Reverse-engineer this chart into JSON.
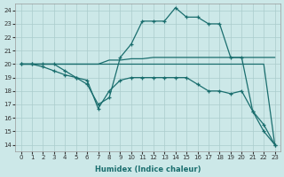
{
  "xlabel": "Humidex (Indice chaleur)",
  "bg_color": "#cce8e8",
  "grid_color": "#aacccc",
  "line_color": "#1a6e6e",
  "xlim": [
    -0.5,
    23.5
  ],
  "ylim": [
    13.5,
    24.5
  ],
  "yticks": [
    14,
    15,
    16,
    17,
    18,
    19,
    20,
    21,
    22,
    23,
    24
  ],
  "xticks": [
    0,
    1,
    2,
    3,
    4,
    5,
    6,
    7,
    8,
    9,
    10,
    11,
    12,
    13,
    14,
    15,
    16,
    17,
    18,
    19,
    20,
    21,
    22,
    23
  ],
  "line1_x": [
    0,
    1,
    2,
    3,
    4,
    5,
    6,
    7,
    8,
    9,
    10,
    11,
    12,
    13,
    14,
    15,
    16,
    17,
    18,
    19,
    20,
    21,
    22,
    23
  ],
  "line1_y": [
    20,
    20,
    20,
    20,
    19.5,
    19.0,
    18.5,
    17.0,
    17.5,
    20.5,
    21.5,
    23.2,
    23.2,
    23.2,
    24.2,
    23.5,
    23.5,
    23.0,
    23.0,
    20.5,
    20.5,
    16.5,
    15.0,
    14.0
  ],
  "line2_x": [
    0,
    1,
    2,
    3,
    4,
    5,
    6,
    7,
    8,
    9,
    10,
    11,
    12,
    13,
    14,
    15,
    16,
    17,
    18,
    19,
    20,
    21,
    22,
    23
  ],
  "line2_y": [
    20,
    20,
    19.8,
    19.5,
    19.2,
    19.0,
    18.8,
    16.7,
    18.0,
    18.8,
    19.0,
    19.0,
    19.0,
    19.0,
    19.0,
    19.0,
    18.5,
    18.0,
    18.0,
    17.8,
    18.0,
    16.5,
    15.5,
    14.0
  ],
  "line3_x": [
    0,
    1,
    2,
    3,
    4,
    5,
    6,
    7,
    8,
    9,
    10,
    11,
    12,
    13,
    14,
    15,
    16,
    17,
    18,
    19,
    20,
    21,
    22,
    23
  ],
  "line3_y": [
    20,
    20,
    20,
    20,
    20,
    20,
    20,
    20,
    20.3,
    20.3,
    20.4,
    20.4,
    20.5,
    20.5,
    20.5,
    20.5,
    20.5,
    20.5,
    20.5,
    20.5,
    20.5,
    20.5,
    20.5,
    20.5
  ],
  "line4_x": [
    0,
    1,
    2,
    3,
    20,
    21,
    22,
    23
  ],
  "line4_y": [
    20,
    20,
    20,
    20,
    20,
    20,
    20,
    14.0
  ]
}
